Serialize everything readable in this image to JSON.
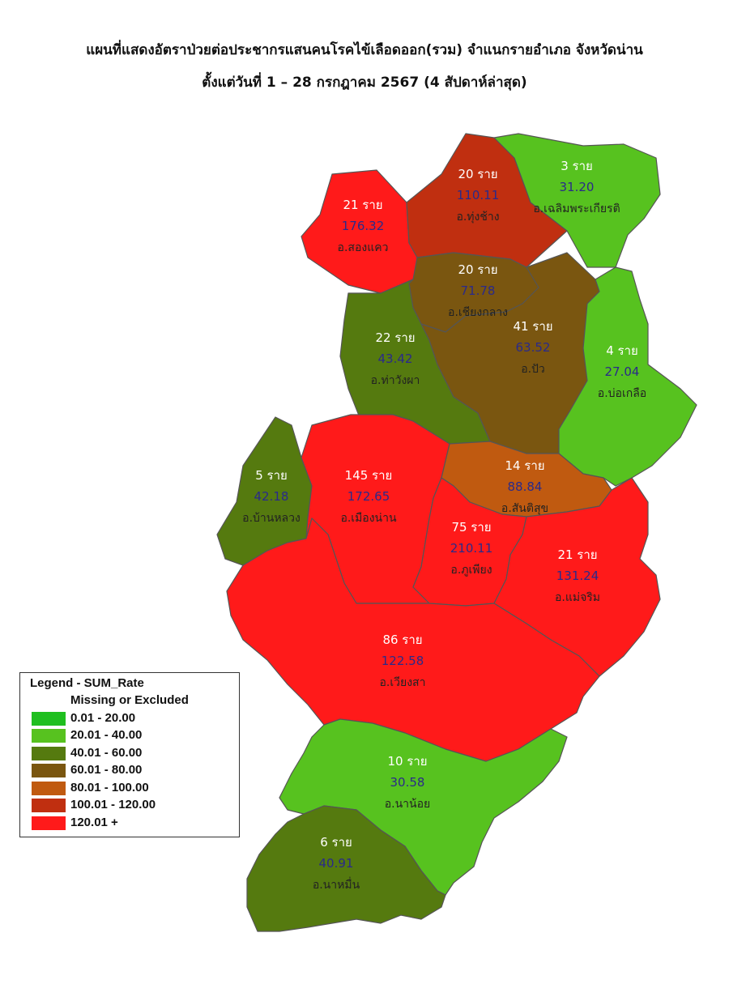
{
  "title_line1": "แผนที่แสดงอัตราป่วยต่อประชากรแสนคนโรคไข้เลือดออก(รวม) จำแนกรายอำเภอ จังหวัดน่าน",
  "title_line2": "ตั้งแต่วันที่  1 – 28 กรกฎาคม 2567 (4 สัปดาห์ล่าสุด)",
  "legend": {
    "title": "Legend - SUM_Rate",
    "items": [
      {
        "label": "Missing or Excluded",
        "color": "#ffffff"
      },
      {
        "label": "0.01 - 20.00",
        "color": "#1fbf1f"
      },
      {
        "label": "20.01 - 40.00",
        "color": "#57c21f"
      },
      {
        "label": "40.01 - 60.00",
        "color": "#557a0f"
      },
      {
        "label": "60.01 - 80.00",
        "color": "#7a5610"
      },
      {
        "label": "80.01 - 100.00",
        "color": "#c05a10"
      },
      {
        "label": "100.01 - 120.00",
        "color": "#c02f10"
      },
      {
        "label": "120.01 +",
        "color": "#ff1a1a"
      }
    ]
  },
  "districts": [
    {
      "id": "song-khwae",
      "cases": "21 ราย",
      "rate": "176.32",
      "name": "อ.สองแคว",
      "color": "#ff1a1a"
    },
    {
      "id": "thung-chang",
      "cases": "20 ราย",
      "rate": "110.11",
      "name": "อ.ทุ่งช้าง",
      "color": "#c02f10"
    },
    {
      "id": "chaloem-phra-kiat",
      "cases": "3 ราย",
      "rate": "31.20",
      "name": "อ.เฉลิมพระเกียรติ",
      "color": "#57c21f"
    },
    {
      "id": "chiang-klang",
      "cases": "20 ราย",
      "rate": "71.78",
      "name": "อ.เชียงกลาง",
      "color": "#7a5610"
    },
    {
      "id": "tha-wang-pha",
      "cases": "22 ราย",
      "rate": "43.42",
      "name": "อ.ท่าวังผา",
      "color": "#557a0f"
    },
    {
      "id": "pua",
      "cases": "41 ราย",
      "rate": "63.52",
      "name": "อ.ปัว",
      "color": "#7a5610"
    },
    {
      "id": "bo-kluea",
      "cases": "4 ราย",
      "rate": "27.04",
      "name": "อ.บ่อเกลือ",
      "color": "#57c21f"
    },
    {
      "id": "ban-luang",
      "cases": "5 ราย",
      "rate": "42.18",
      "name": "อ.บ้านหลวง",
      "color": "#557a0f"
    },
    {
      "id": "mueang-nan",
      "cases": "145 ราย",
      "rate": "172.65",
      "name": "อ.เมืองน่าน",
      "color": "#ff1a1a"
    },
    {
      "id": "santi-suk",
      "cases": "14 ราย",
      "rate": "88.84",
      "name": "อ.สันติสุข",
      "color": "#c05a10"
    },
    {
      "id": "phu-phiang",
      "cases": "75 ราย",
      "rate": "210.11",
      "name": "อ.ภูเพียง",
      "color": "#ff1a1a"
    },
    {
      "id": "mae-charim",
      "cases": "21 ราย",
      "rate": "131.24",
      "name": "อ.แม่จริม",
      "color": "#ff1a1a"
    },
    {
      "id": "wiang-sa",
      "cases": "86 ราย",
      "rate": "122.58",
      "name": "อ.เวียงสา",
      "color": "#ff1a1a"
    },
    {
      "id": "na-noi",
      "cases": "10 ราย",
      "rate": "30.58",
      "name": "อ.นาน้อย",
      "color": "#57c21f"
    },
    {
      "id": "na-muen",
      "cases": "6 ราย",
      "rate": "40.91",
      "name": "อ.นาหมื่น",
      "color": "#557a0f"
    }
  ]
}
